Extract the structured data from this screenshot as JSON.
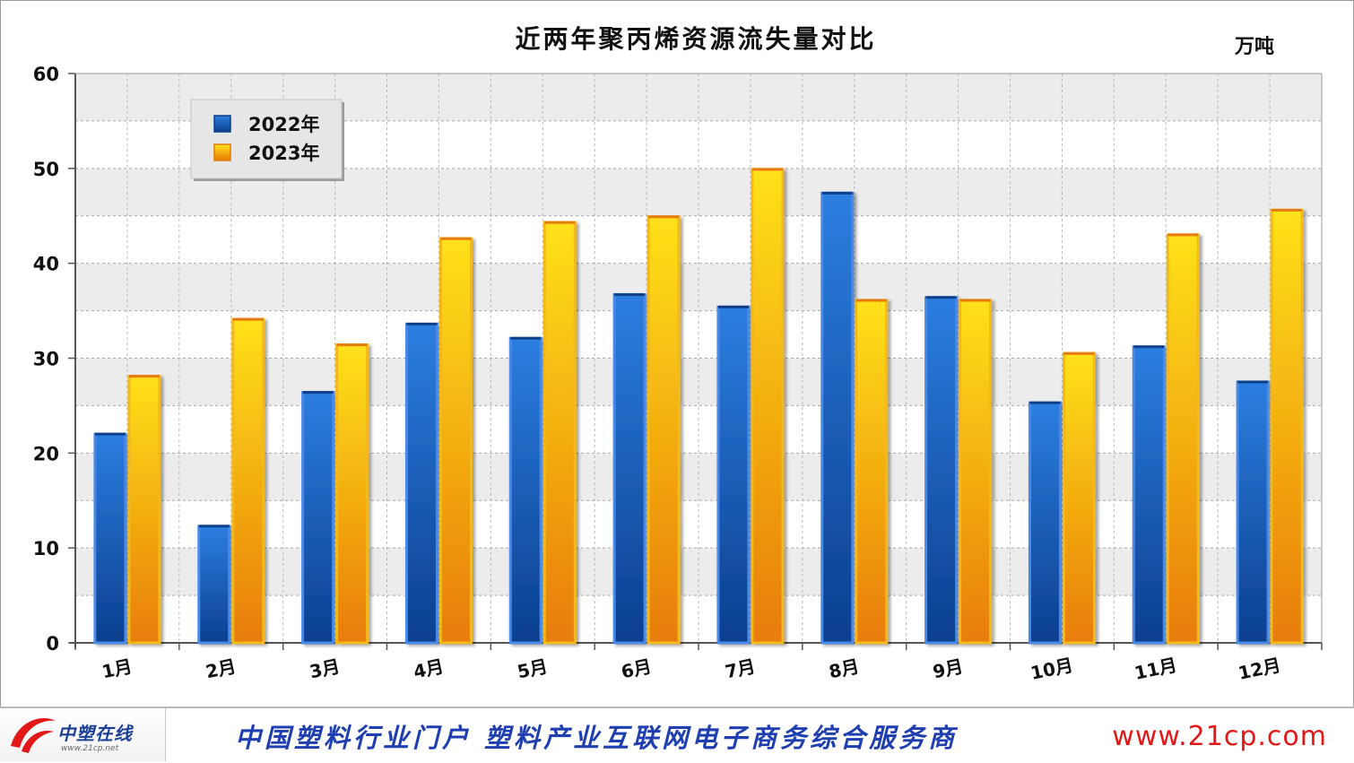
{
  "chart_data": {
    "type": "bar",
    "title": "近两年聚丙烯资源流失量对比",
    "unit": "万吨",
    "categories": [
      "1月",
      "2月",
      "3月",
      "4月",
      "5月",
      "6月",
      "7月",
      "8月",
      "9月",
      "10月",
      "11月",
      "12月"
    ],
    "series": [
      {
        "name": "2022年",
        "color": "#1f5fbd",
        "values": [
          22.0,
          12.3,
          26.4,
          33.6,
          32.1,
          36.7,
          35.4,
          47.4,
          36.4,
          25.3,
          31.2,
          27.5
        ]
      },
      {
        "name": "2023年",
        "color": "#f0a20f",
        "values": [
          28.1,
          34.1,
          31.4,
          42.6,
          44.3,
          44.9,
          49.9,
          36.1,
          36.1,
          30.5,
          43.0,
          45.6
        ]
      }
    ],
    "ylim": [
      0,
      60
    ],
    "yticks": [
      0,
      10,
      20,
      30,
      40,
      50,
      60
    ],
    "grid": true,
    "legend": "top-left"
  },
  "footer": {
    "logo_text": "中塑在线",
    "logo_sub": "www.21cp.net",
    "slogan": "中国塑料行业门户  塑料产业互联网电子商务综合服务商",
    "url": "www.21cp.com"
  }
}
